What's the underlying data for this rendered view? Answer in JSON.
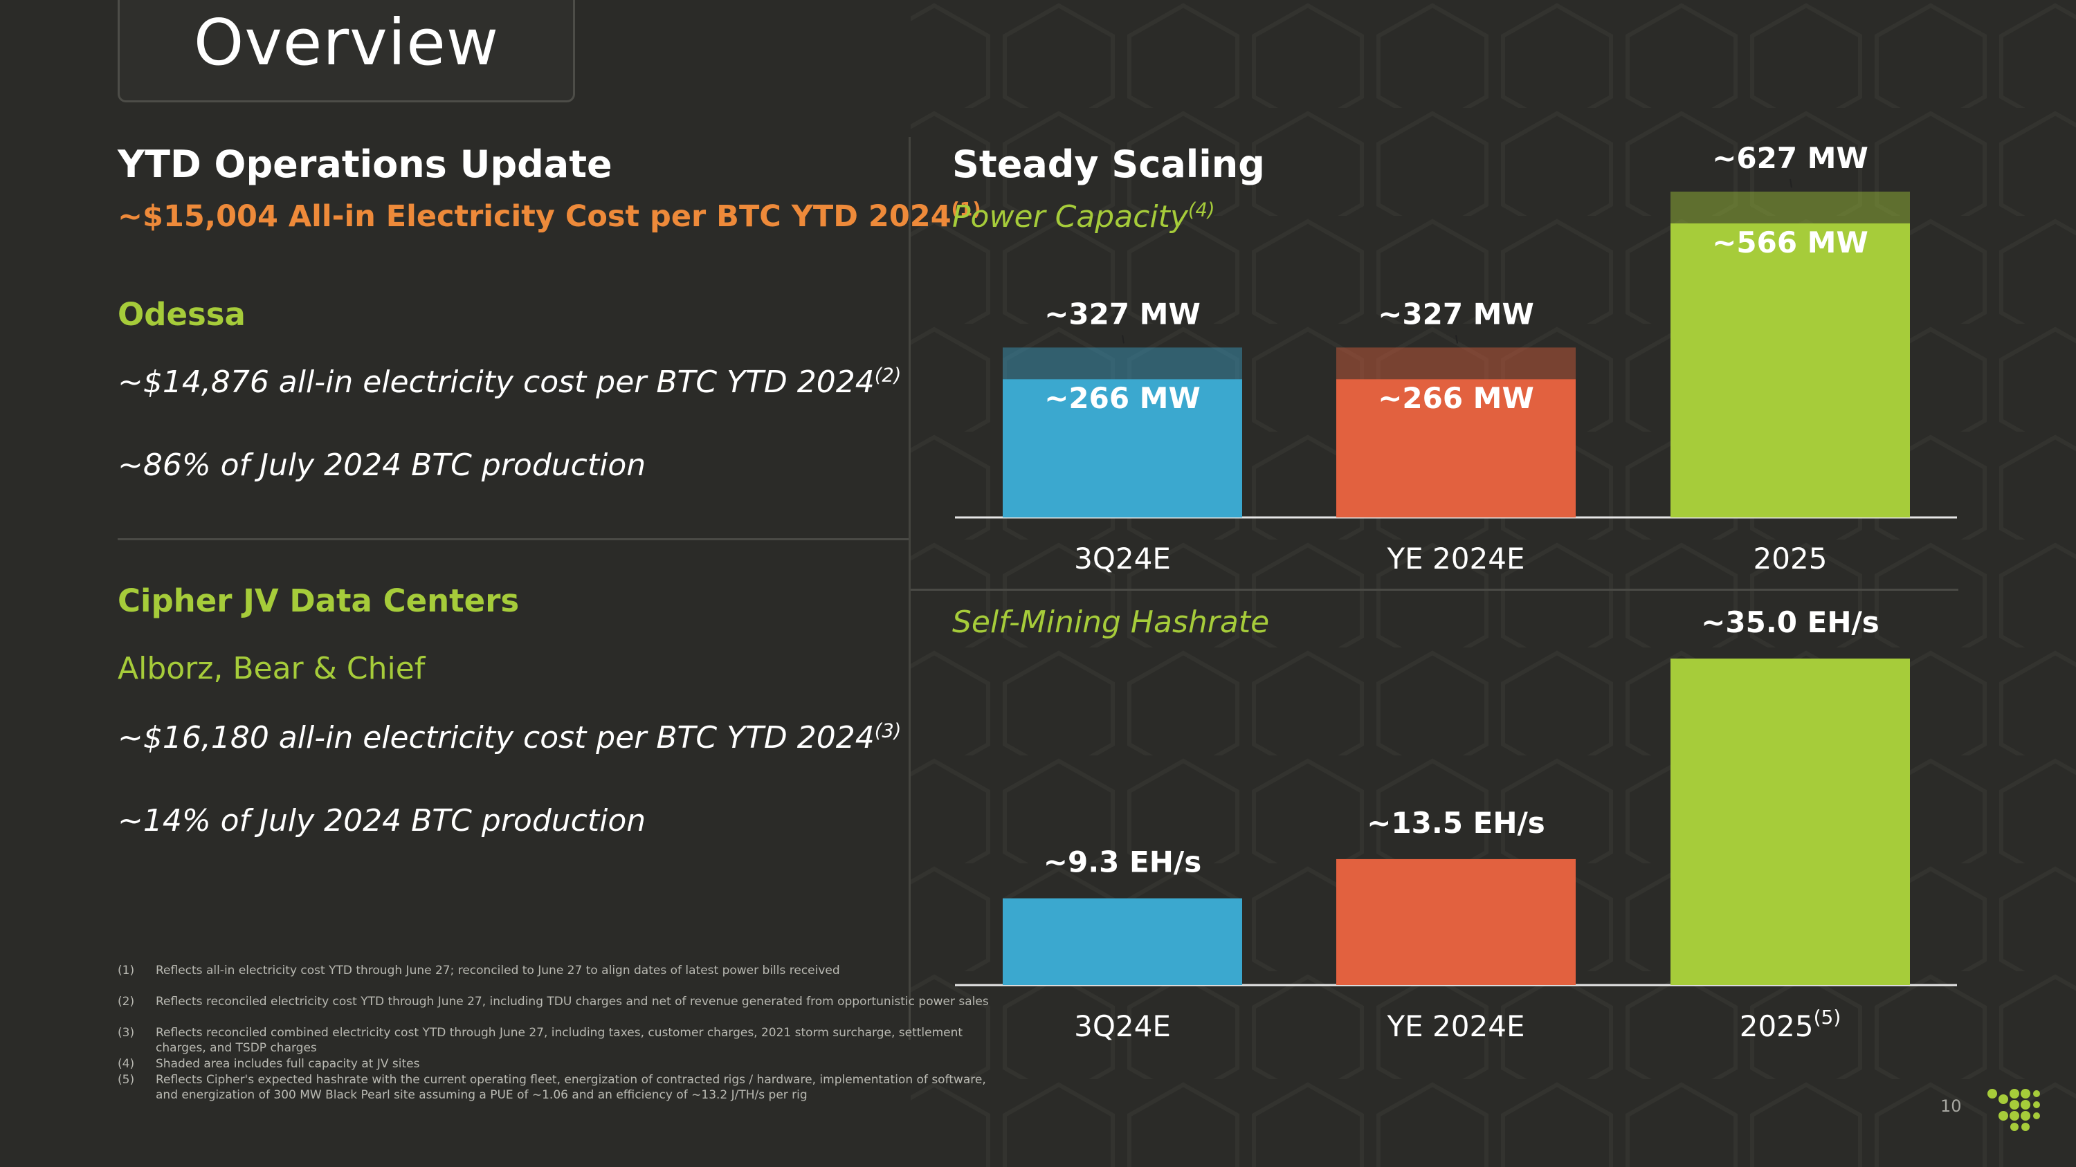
{
  "title": "Overview",
  "left": {
    "heading": "YTD Operations Update",
    "headline_cost": "~$15,004 All-in Electricity Cost per BTC YTD 2024",
    "headline_cost_ref": "(1)",
    "odessa": {
      "name": "Odessa",
      "cost": "~$14,876 all-in electricity cost per BTC YTD 2024",
      "cost_ref": "(2)",
      "share": "~86% of July 2024 BTC production"
    },
    "jv": {
      "name": "Cipher JV Data Centers",
      "sites": "Alborz, Bear & Chief",
      "cost": "~$16,180 all-in electricity cost per BTC YTD 2024",
      "cost_ref": "(3)",
      "share": "~14% of July 2024 BTC production"
    }
  },
  "footnotes": [
    {
      "num": "(1)",
      "text": "Reflects all-in electricity cost YTD through June 27; reconciled to June 27 to align dates of latest power bills received"
    },
    {
      "num": "(2)",
      "text": "Reflects reconciled electricity cost YTD through June 27, including TDU charges and net of revenue generated from opportunistic power sales"
    },
    {
      "num": "(3)",
      "text": "Reflects reconciled combined electricity cost YTD through June 27, including taxes, customer charges, 2021 storm surcharge, settlement charges, and TSDP charges"
    },
    {
      "num": "(4)",
      "text": "Shaded area includes full capacity at JV sites"
    },
    {
      "num": "(5)",
      "text": "Reflects Cipher's expected hashrate with the current operating fleet, energization of contracted rigs / hardware, implementation of software, and energization of 300 MW Black Pearl site assuming a PUE of ~1.06 and an efficiency of ~13.2 J/TH/s per rig"
    }
  ],
  "right": {
    "heading": "Steady Scaling",
    "power_label": "Power Capacity",
    "power_label_ref": "(4)",
    "hash_label": "Self-Mining Hashrate"
  },
  "page_number": "10",
  "colors": {
    "blue": "#3ba8cf",
    "red": "#e2613f",
    "green": "#a6cc3a",
    "orange": "#ee8a3a",
    "background": "#2b2b28"
  },
  "chart_data": [
    {
      "type": "bar",
      "title": "Power Capacity",
      "categories": [
        "3Q24E",
        "YE 2024E",
        "2025"
      ],
      "category_sup": [
        "",
        "",
        ""
      ],
      "series": [
        {
          "name": "",
          "values": [
            266,
            266,
            566
          ],
          "labels": [
            "~266 MW",
            "~266 MW",
            "~566 MW"
          ]
        },
        {
          "name": "",
          "values": [
            61,
            61,
            61
          ],
          "totals": [
            327,
            327,
            627
          ],
          "labels": [
            "~327 MW",
            "~327 MW",
            "~627 MW"
          ]
        }
      ],
      "bar_colors": [
        "#3ba8cf",
        "#e2613f",
        "#a6cc3a"
      ],
      "ylim": [
        0,
        627
      ],
      "grid": false
    },
    {
      "type": "bar",
      "title": "Self-Mining Hashrate",
      "categories": [
        "3Q24E",
        "YE 2024E",
        "2025"
      ],
      "category_sup": [
        "",
        "",
        "(5)"
      ],
      "series": [
        {
          "name": "",
          "values": [
            9.3,
            13.5,
            35.0
          ],
          "labels": [
            "~9.3 EH/s",
            "~13.5 EH/s",
            "~35.0 EH/s"
          ]
        }
      ],
      "bar_colors": [
        "#3ba8cf",
        "#e2613f",
        "#a6cc3a"
      ],
      "ylim": [
        0,
        35.0
      ],
      "grid": false
    }
  ]
}
